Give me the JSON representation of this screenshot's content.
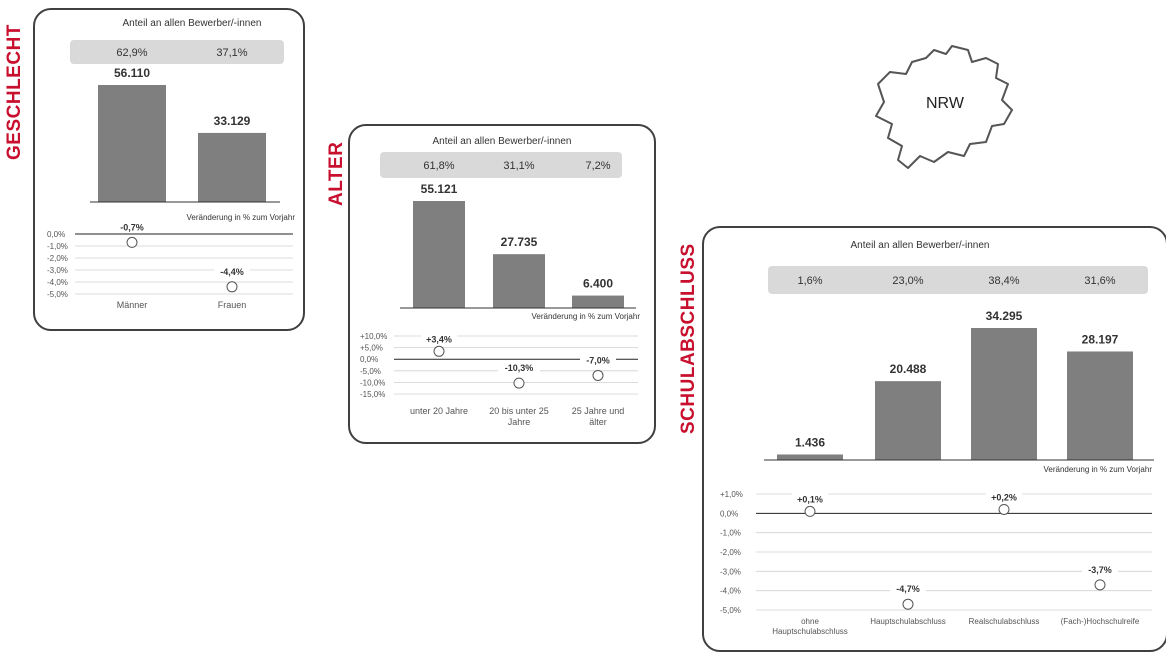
{
  "panels": {
    "geschlecht": {
      "label": "GESCHLECHT",
      "header": "Anteil an allen Bewerber/-innen",
      "shares": [
        "62,9%",
        "37,1%"
      ],
      "bar_labels": [
        "56.110",
        "33.129"
      ],
      "change_caption": "Veränderung in % zum Vorjahr",
      "change_labels": [
        "-0,7%",
        "-4,4%"
      ],
      "axis_ticks": [
        "0,0%",
        "-1,0%",
        "-2,0%",
        "-3,0%",
        "-4,0%",
        "-5,0%"
      ],
      "categories": [
        "Männer",
        "Frauen"
      ]
    },
    "alter": {
      "label": "ALTER",
      "header": "Anteil an allen Bewerber/-innen",
      "shares": [
        "61,8%",
        "31,1%",
        "7,2%"
      ],
      "bar_labels": [
        "55.121",
        "27.735",
        "6.400"
      ],
      "change_caption": "Veränderung in % zum Vorjahr",
      "change_labels": [
        "+3,4%",
        "-10,3%",
        "-7,0%"
      ],
      "axis_ticks": [
        "+10,0%",
        "+5,0%",
        "0,0%",
        "-5,0%",
        "-10,0%",
        "-15,0%"
      ],
      "categories": [
        [
          "unter 20 Jahre"
        ],
        [
          "20 bis unter 25",
          "Jahre"
        ],
        [
          "25 Jahre und",
          "älter"
        ]
      ]
    },
    "schulabschluss": {
      "label": "SCHULABSCHLUSS",
      "header": "Anteil an allen Bewerber/-innen",
      "shares": [
        "1,6%",
        "23,0%",
        "38,4%",
        "31,6%"
      ],
      "bar_labels": [
        "1.436",
        "20.488",
        "34.295",
        "28.197"
      ],
      "change_caption": "Veränderung in % zum Vorjahr",
      "change_labels": [
        "+0,1%",
        "-4,7%",
        "+0,2%",
        "-3,7%"
      ],
      "axis_ticks": [
        "+1,0%",
        "0,0%",
        "-1,0%",
        "-2,0%",
        "-3,0%",
        "-4,0%",
        "-5,0%"
      ],
      "categories": [
        [
          "ohne",
          "Hauptschulabschluss"
        ],
        [
          "Hauptschulabschluss"
        ],
        [
          "Realschulabschluss"
        ],
        [
          "(Fach-)Hochschulreife"
        ]
      ]
    }
  },
  "map": {
    "label": "NRW"
  },
  "colors": {
    "accent": "#c8102e",
    "bar": "#7f7f7f",
    "share_band": "#d9d9d9"
  },
  "chart_data": [
    {
      "type": "bar",
      "categories": [
        "Männer",
        "Frauen"
      ],
      "series": [
        {
          "values": [
            56110,
            33129
          ]
        }
      ],
      "shares_percent": [
        62.9,
        37.1
      ],
      "change_percent": [
        -0.7,
        -4.4
      ],
      "change_axis": [
        -5,
        0
      ]
    },
    {
      "type": "bar",
      "categories": [
        "unter 20 Jahre",
        "20 bis unter 25 Jahre",
        "25 Jahre und älter"
      ],
      "series": [
        {
          "values": [
            55121,
            27735,
            6400
          ]
        }
      ],
      "shares_percent": [
        61.8,
        31.1,
        7.2
      ],
      "change_percent": [
        3.4,
        -10.3,
        -7.0
      ],
      "change_axis": [
        -15,
        10
      ]
    },
    {
      "type": "bar",
      "categories": [
        "ohne Hauptschulabschluss",
        "Hauptschulabschluss",
        "Realschulabschluss",
        "(Fach-)Hochschulreife"
      ],
      "series": [
        {
          "values": [
            1436,
            20488,
            34295,
            28197
          ]
        }
      ],
      "shares_percent": [
        1.6,
        23.0,
        38.4,
        31.6
      ],
      "change_percent": [
        0.1,
        -4.7,
        0.2,
        -3.7
      ],
      "change_axis": [
        -5,
        1
      ]
    }
  ]
}
